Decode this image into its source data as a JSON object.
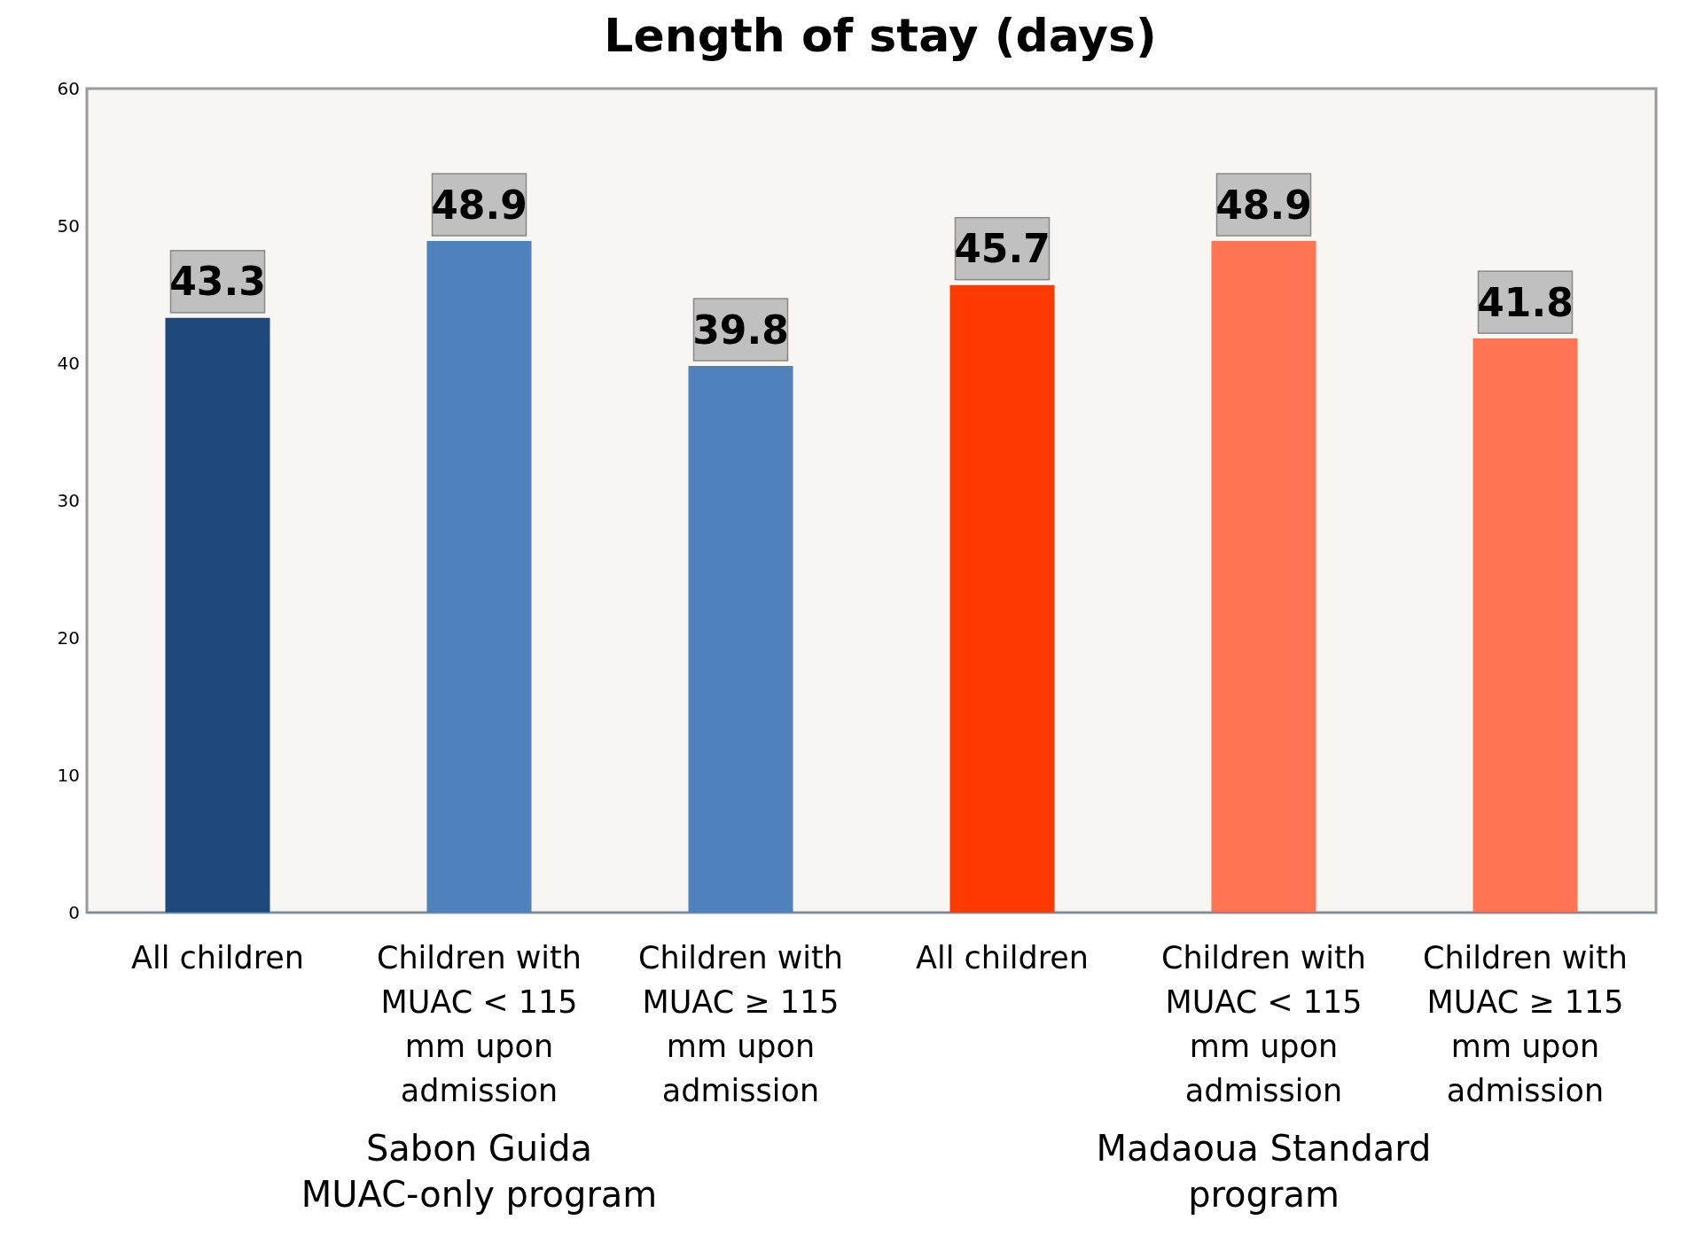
{
  "chart_data": {
    "type": "bar",
    "title": "Length of stay (days)",
    "categories": [
      "All children",
      "Children with MUAC < 115 mm upon admission",
      "Children with MUAC ≥ 115 mm upon admission",
      "All children",
      "Children with MUAC < 115 mm upon admission",
      "Children with MUAC ≥ 115 mm upon admission"
    ],
    "values": [
      43.3,
      48.9,
      39.8,
      45.7,
      48.9,
      41.8
    ],
    "colors": [
      "#1f497d",
      "#4f81bd",
      "#4f81bd",
      "#ff3a00",
      "#ff7452",
      "#ff7452"
    ],
    "ylim": [
      0,
      60
    ],
    "yticks": [
      0,
      10,
      20,
      30,
      40,
      50,
      60
    ],
    "data_labels": true,
    "annotations": [
      "Sabon Guida MUAC-only program",
      "Madaoua Standard program"
    ]
  }
}
